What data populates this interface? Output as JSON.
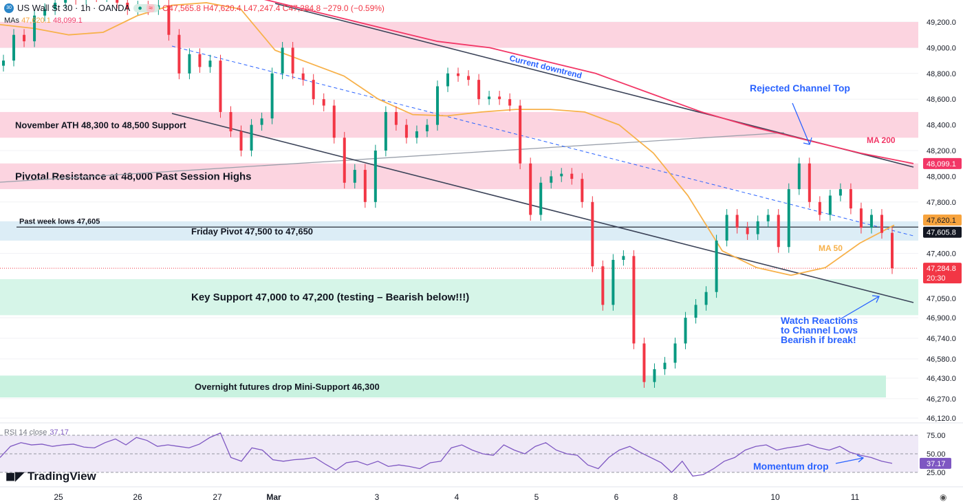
{
  "header": {
    "symbol_badge": "30",
    "title": "US Wall St 30 · 1h · OANDA",
    "open": "O47,565.8",
    "high": "H47,620.4",
    "low": "L47,247.4",
    "close": "C47,284.8",
    "change": "−279.0 (−0.59%)",
    "mas_label": "MAs",
    "ma50_value": "47,620.1",
    "ma200_value": "48,099.1"
  },
  "rsi": {
    "label": "RSI 14 close",
    "value": "37.17"
  },
  "brand": "TradingView",
  "colors": {
    "up": "#089981",
    "down": "#f23645",
    "ma50": "#f7b14a",
    "ma200": "#f23666",
    "rsi": "#7e57c2",
    "annotation": "#2962ff",
    "channel": "#3b4358"
  },
  "chart_data": {
    "type": "candlestick",
    "ylim": [
      46050,
      49350
    ],
    "y_ticks": [
      "49,200.0",
      "49,000.0",
      "48,800.0",
      "48,600.0",
      "48,400.0",
      "48,200.0",
      "48,000.0",
      "47,800.0",
      "47,400.0",
      "47,050.0",
      "46,900.0",
      "46,740.0",
      "46,580.0",
      "46,430.0",
      "46,270.0",
      "46,120.0"
    ],
    "y_tick_values": [
      49200,
      49000,
      48800,
      48600,
      48400,
      48200,
      48000,
      47800,
      47400,
      47050,
      46900,
      46740,
      46580,
      46430,
      46270,
      46120
    ],
    "x_ticks": [
      "25",
      "26",
      "27",
      "Mar",
      "3",
      "4",
      "5",
      "6",
      "8",
      "10",
      "11"
    ],
    "closes": [
      48900,
      49100,
      49050,
      49250,
      49300,
      49350,
      49400,
      49380,
      49420,
      49400,
      49450,
      49350,
      49300,
      49320,
      49300,
      49330,
      49100,
      48800,
      48950,
      48850,
      48900,
      48500,
      48350,
      48200,
      48400,
      48450,
      48800,
      49000,
      48800,
      48750,
      48600,
      48550,
      48300,
      47950,
      48050,
      47800,
      48200,
      48500,
      48400,
      48300,
      48350,
      48400,
      48700,
      48800,
      48780,
      48750,
      48600,
      48620,
      48600,
      48550,
      48100,
      47700,
      47950,
      48000,
      48020,
      47980,
      47800,
      47300,
      47000,
      47350,
      47380,
      46700,
      46400,
      46500,
      46550,
      46700,
      46900,
      47000,
      47100,
      47500,
      47700,
      47600,
      47550,
      47650,
      47700,
      47450,
      47900,
      48100,
      47800,
      47700,
      47850,
      47900,
      47750,
      47600,
      47700,
      47560,
      47284.8
    ],
    "ma50": [
      49180,
      49150,
      49100,
      49120,
      49250,
      49330,
      49350,
      49300,
      48980,
      48880,
      48780,
      48600,
      48480,
      48470,
      48500,
      48520,
      48520,
      48500,
      48400,
      48180,
      47850,
      47420,
      47290,
      47230,
      47290,
      47480,
      47620.1
    ],
    "ma200": [
      49500,
      49450,
      49350,
      49250,
      49150,
      49050,
      49000,
      48900,
      48800,
      48650,
      48500,
      48380,
      48280,
      48180,
      48099.1
    ],
    "rsi_values": [
      45,
      60,
      65,
      62,
      63,
      60,
      62,
      63,
      59,
      58,
      65,
      70,
      62,
      72,
      68,
      60,
      62,
      60,
      58,
      63,
      72,
      78,
      45,
      40,
      58,
      55,
      42,
      40,
      42,
      43,
      45,
      36,
      28,
      38,
      40,
      35,
      40,
      33,
      35,
      33,
      30,
      38,
      40,
      58,
      62,
      55,
      50,
      48,
      62,
      55,
      50,
      60,
      65,
      55,
      50,
      48,
      35,
      30,
      45,
      55,
      60,
      52,
      45,
      38,
      25,
      40,
      20,
      22,
      30,
      40,
      45,
      55,
      60,
      62,
      55,
      58,
      60,
      63,
      58,
      55,
      60,
      52,
      48,
      45,
      40,
      37.17
    ],
    "rsi_ticks": [
      "75.00",
      "50.00",
      "25.00"
    ],
    "price_labels": {
      "ma200": "48,099.1",
      "ma50": "47,620.1",
      "pivot": "47,605.8",
      "last": "47,284.8",
      "countdown": "20:30"
    },
    "zones": [
      {
        "from": 49000,
        "to": 49200,
        "label": "",
        "color": "#fcd4e0"
      },
      {
        "from": 48300,
        "to": 48500,
        "label": "November ATH 48,300 to 48,500 Support",
        "color": "#fcd4e0"
      },
      {
        "from": 47900,
        "to": 48100,
        "label": "Pivotal Resistance at 48,000 Past Session Highs",
        "color": "#fcd4e0"
      },
      {
        "from": 47500,
        "to": 47650,
        "label": "Friday Pivot 47,500 to 47,650",
        "color": "#dcedf6"
      },
      {
        "from": 46920,
        "to": 47200,
        "label": "Key Support 47,000 to 47,200 (testing – Bearish below!!!)",
        "color": "#d6f5e8"
      },
      {
        "from": 46280,
        "to": 46450,
        "label": "Overnight futures drop Mini-Support 46,300",
        "color": "#c9f2e0"
      }
    ],
    "horizontal_line": {
      "value": 47605,
      "label": "Past week lows 47,605"
    },
    "annotations": {
      "downtrend": "Current downtrend",
      "rejected": "Rejected Channel Top",
      "ma200": "MA 200",
      "ma50": "MA 50",
      "watch": [
        "Watch Reactions",
        "to Channel Lows",
        "Bearish if break!"
      ],
      "momentum": "Momentum drop"
    }
  }
}
